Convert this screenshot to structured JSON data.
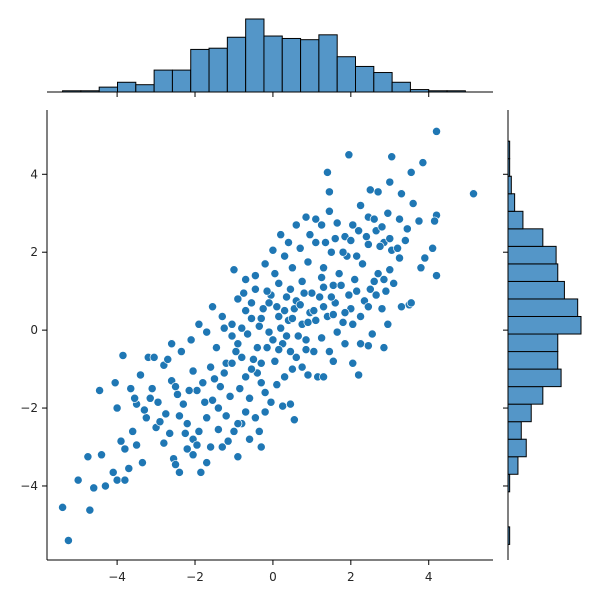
{
  "chart_data": {
    "type": "scatter",
    "title": "",
    "xlabel": "",
    "ylabel": "",
    "xlim": [
      -5.8,
      5.65
    ],
    "ylim": [
      -5.9,
      5.65
    ],
    "x_ticks": [
      -4,
      -2,
      0,
      2,
      4
    ],
    "y_ticks": [
      -4,
      -2,
      0,
      2,
      4
    ],
    "x_tick_labels": [
      "−4",
      "−2",
      "0",
      "2",
      "4"
    ],
    "y_tick_labels": [
      "−4",
      "−2",
      "0",
      "2",
      "4"
    ],
    "grid": false,
    "legend": "none",
    "point_color": "#1f77b4",
    "point_edge_color": "#ffffff",
    "hist_color": "#5496c8",
    "hist_edge_color": "#000000",
    "marginal_x_hist": {
      "bin_edges": [
        -5.4,
        -4.93,
        -4.46,
        -3.99,
        -3.52,
        -3.05,
        -2.58,
        -2.11,
        -1.64,
        -1.17,
        -0.7,
        -0.23,
        0.24,
        0.71,
        1.18,
        1.65,
        2.12,
        2.59,
        3.06,
        3.53,
        4.0,
        4.47,
        4.94,
        5.41
      ],
      "counts": [
        1,
        1,
        4,
        8,
        6,
        18,
        18,
        35,
        36,
        45,
        60,
        46,
        44,
        43,
        47,
        29,
        21,
        16,
        8,
        2,
        1,
        1,
        0
      ]
    },
    "marginal_y_hist": {
      "bin_edges": [
        -5.5,
        -5.05,
        -4.6,
        -4.15,
        -3.7,
        -3.25,
        -2.8,
        -2.35,
        -1.9,
        -1.45,
        -1.0,
        -0.55,
        -0.1,
        0.35,
        0.8,
        1.25,
        1.7,
        2.15,
        2.6,
        3.05,
        3.5,
        3.95,
        4.4,
        4.85
      ],
      "counts": [
        1,
        0,
        0,
        1,
        6,
        11,
        8,
        14,
        21,
        32,
        30,
        30,
        44,
        42,
        34,
        30,
        29,
        21,
        9,
        4,
        2,
        1,
        1
      ]
    },
    "points": [
      [
        -5.25,
        -5.4
      ],
      [
        -5.4,
        -4.55
      ],
      [
        -4.7,
        -4.62
      ],
      [
        -5.0,
        -3.85
      ],
      [
        -4.75,
        -3.25
      ],
      [
        -4.6,
        -4.05
      ],
      [
        -4.3,
        -4.0
      ],
      [
        -4.4,
        -3.2
      ],
      [
        -4.1,
        -3.65
      ],
      [
        -4.0,
        -3.85
      ],
      [
        -3.8,
        -3.85
      ],
      [
        -3.7,
        -3.55
      ],
      [
        -3.9,
        -2.85
      ],
      [
        -3.8,
        -3.05
      ],
      [
        -3.6,
        -2.6
      ],
      [
        -3.5,
        -2.95
      ],
      [
        -3.35,
        -3.4
      ],
      [
        -4.0,
        -2.0
      ],
      [
        -3.65,
        -1.5
      ],
      [
        -3.5,
        -1.9
      ],
      [
        -4.45,
        -1.55
      ],
      [
        -4.05,
        -1.35
      ],
      [
        -3.85,
        -0.65
      ],
      [
        -3.2,
        -0.7
      ],
      [
        -3.05,
        -0.7
      ],
      [
        -3.1,
        -1.5
      ],
      [
        -3.25,
        -2.25
      ],
      [
        -3.0,
        -2.5
      ],
      [
        -2.8,
        -2.9
      ],
      [
        -2.55,
        -3.3
      ],
      [
        -2.4,
        -3.65
      ],
      [
        -2.5,
        -3.45
      ],
      [
        -2.05,
        -3.2
      ],
      [
        -1.7,
        -3.4
      ],
      [
        -1.85,
        -3.65
      ],
      [
        -1.3,
        -3.0
      ],
      [
        -2.8,
        -0.9
      ],
      [
        -2.7,
        -0.75
      ],
      [
        -2.6,
        -1.3
      ],
      [
        -2.45,
        -1.65
      ],
      [
        -2.3,
        -1.9
      ],
      [
        -2.2,
        -2.4
      ],
      [
        -2.05,
        -2.8
      ],
      [
        -1.9,
        -2.6
      ],
      [
        -1.7,
        -2.25
      ],
      [
        -1.55,
        -1.8
      ],
      [
        -1.4,
        -2.0
      ],
      [
        -1.2,
        -2.2
      ],
      [
        -1.0,
        -2.6
      ],
      [
        -0.8,
        -2.4
      ],
      [
        -0.6,
        -2.8
      ],
      [
        -0.35,
        -2.6
      ],
      [
        -0.2,
        -2.1
      ],
      [
        -0.05,
        -1.85
      ],
      [
        0.25,
        -1.95
      ],
      [
        0.45,
        -1.9
      ],
      [
        0.55,
        -2.3
      ],
      [
        0.1,
        -1.4
      ],
      [
        0.3,
        -1.2
      ],
      [
        0.5,
        -1.0
      ],
      [
        0.75,
        -0.95
      ],
      [
        0.9,
        -1.15
      ],
      [
        1.15,
        -1.2
      ],
      [
        1.3,
        -1.2
      ],
      [
        1.55,
        -0.8
      ],
      [
        1.85,
        -0.35
      ],
      [
        2.05,
        -0.85
      ],
      [
        2.2,
        -1.15
      ],
      [
        2.45,
        -0.4
      ],
      [
        2.55,
        -0.1
      ],
      [
        2.95,
        0.15
      ],
      [
        2.85,
        -0.45
      ],
      [
        -2.6,
        -0.35
      ],
      [
        -2.35,
        -0.55
      ],
      [
        -2.1,
        -0.25
      ],
      [
        -1.9,
        0.15
      ],
      [
        -1.7,
        -0.05
      ],
      [
        -1.55,
        0.6
      ],
      [
        -1.3,
        0.35
      ],
      [
        -1.05,
        0.15
      ],
      [
        -0.9,
        0.8
      ],
      [
        -0.7,
        0.5
      ],
      [
        -0.45,
        1.05
      ],
      [
        -0.25,
        0.55
      ],
      [
        -0.05,
        0.9
      ],
      [
        0.15,
        0.35
      ],
      [
        0.35,
        0.85
      ],
      [
        0.55,
        0.55
      ],
      [
        0.75,
        0.15
      ],
      [
        0.95,
        0.45
      ],
      [
        1.2,
        0.85
      ],
      [
        1.4,
        0.35
      ],
      [
        1.6,
        0.7
      ],
      [
        1.8,
        0.2
      ],
      [
        2.0,
        0.55
      ],
      [
        2.25,
        0.35
      ],
      [
        -1.45,
        -0.45
      ],
      [
        -1.2,
        -0.85
      ],
      [
        -0.95,
        -0.55
      ],
      [
        -0.7,
        -1.2
      ],
      [
        -0.5,
        -0.75
      ],
      [
        -0.3,
        -1.35
      ],
      [
        -0.15,
        -0.45
      ],
      [
        0.05,
        -0.8
      ],
      [
        0.25,
        -0.35
      ],
      [
        0.45,
        -0.55
      ],
      [
        0.65,
        -0.15
      ],
      [
        0.85,
        -0.5
      ],
      [
        -2.05,
        -1.05
      ],
      [
        -1.8,
        -1.35
      ],
      [
        -1.6,
        -0.95
      ],
      [
        -1.35,
        -1.45
      ],
      [
        -1.1,
        -1.7
      ],
      [
        -0.85,
        -1.5
      ],
      [
        -0.6,
        -1.75
      ],
      [
        -0.4,
        -1.1
      ],
      [
        -0.2,
        -1.6
      ],
      [
        0.0,
        -0.25
      ],
      [
        0.2,
        0.05
      ],
      [
        0.4,
        0.25
      ],
      [
        -1.0,
        1.55
      ],
      [
        -0.7,
        1.3
      ],
      [
        -0.45,
        1.4
      ],
      [
        -0.2,
        1.7
      ],
      [
        0.05,
        1.45
      ],
      [
        0.3,
        1.9
      ],
      [
        0.5,
        1.6
      ],
      [
        0.7,
        2.1
      ],
      [
        0.9,
        1.75
      ],
      [
        1.1,
        2.25
      ],
      [
        1.3,
        1.6
      ],
      [
        1.5,
        2.0
      ],
      [
        1.7,
        1.45
      ],
      [
        1.9,
        1.9
      ],
      [
        2.1,
        1.3
      ],
      [
        2.3,
        1.7
      ],
      [
        2.5,
        1.05
      ],
      [
        2.7,
        1.45
      ],
      [
        2.9,
        1.0
      ],
      [
        3.1,
        1.2
      ],
      [
        3.3,
        0.6
      ],
      [
        3.5,
        0.65
      ],
      [
        3.55,
        0.7
      ],
      [
        3.8,
        1.6
      ],
      [
        0.0,
        2.05
      ],
      [
        0.2,
        2.45
      ],
      [
        0.4,
        2.25
      ],
      [
        0.6,
        2.7
      ],
      [
        0.85,
        2.9
      ],
      [
        0.95,
        2.45
      ],
      [
        1.25,
        2.7
      ],
      [
        1.45,
        3.05
      ],
      [
        1.65,
        2.75
      ],
      [
        1.85,
        2.4
      ],
      [
        2.05,
        2.7
      ],
      [
        2.25,
        3.2
      ],
      [
        2.45,
        2.9
      ],
      [
        2.65,
        2.55
      ],
      [
        2.85,
        2.25
      ],
      [
        3.05,
        2.05
      ],
      [
        3.25,
        1.85
      ],
      [
        3.45,
        2.6
      ],
      [
        2.5,
        3.6
      ],
      [
        2.7,
        3.55
      ],
      [
        3.0,
        3.8
      ],
      [
        3.3,
        3.5
      ],
      [
        3.55,
        4.05
      ],
      [
        3.85,
        4.3
      ],
      [
        3.05,
        4.45
      ],
      [
        1.4,
        4.05
      ],
      [
        1.45,
        3.55
      ],
      [
        1.95,
        4.5
      ],
      [
        4.2,
        5.1
      ],
      [
        5.15,
        3.5
      ],
      [
        4.2,
        2.95
      ],
      [
        4.15,
        2.8
      ],
      [
        4.1,
        2.1
      ],
      [
        4.2,
        1.4
      ],
      [
        3.9,
        1.85
      ],
      [
        3.75,
        2.8
      ],
      [
        3.6,
        3.25
      ],
      [
        3.25,
        2.85
      ],
      [
        2.95,
        3.0
      ],
      [
        2.75,
        2.15
      ],
      [
        2.45,
        2.2
      ],
      [
        2.15,
        1.9
      ],
      [
        1.55,
        1.15
      ],
      [
        1.25,
        1.35
      ],
      [
        1.0,
        0.95
      ],
      [
        0.75,
        1.25
      ],
      [
        0.45,
        1.05
      ],
      [
        0.15,
        1.2
      ],
      [
        -0.15,
        1.0
      ],
      [
        -0.35,
        0.1
      ],
      [
        -0.55,
        0.3
      ],
      [
        -0.8,
        0.05
      ],
      [
        -1.05,
        -0.15
      ],
      [
        -1.25,
        0.05
      ],
      [
        -0.9,
        -0.35
      ],
      [
        -0.65,
        -0.1
      ],
      [
        -0.4,
        -0.45
      ],
      [
        -0.1,
        -0.05
      ],
      [
        0.15,
        -0.5
      ],
      [
        0.35,
        -0.15
      ],
      [
        0.6,
        0.75
      ],
      [
        0.8,
        0.95
      ],
      [
        1.05,
        0.5
      ],
      [
        1.3,
        1.1
      ],
      [
        1.55,
        0.4
      ],
      [
        1.75,
        1.15
      ],
      [
        1.95,
        0.9
      ],
      [
        2.15,
        1.0
      ],
      [
        2.35,
        0.75
      ],
      [
        2.6,
        1.25
      ],
      [
        2.8,
        0.55
      ],
      [
        3.0,
        1.55
      ],
      [
        -2.95,
        -1.85
      ],
      [
        -2.75,
        -2.15
      ],
      [
        -2.5,
        -1.45
      ],
      [
        -2.25,
        -2.65
      ],
      [
        -1.95,
        -1.55
      ],
      [
        -1.75,
        -1.85
      ],
      [
        -1.5,
        -1.25
      ],
      [
        -1.25,
        -1.1
      ],
      [
        -1.05,
        -0.85
      ],
      [
        -0.8,
        -0.7
      ],
      [
        -0.55,
        -1.0
      ],
      [
        -0.3,
        -0.85
      ],
      [
        -1.6,
        -3.0
      ],
      [
        -1.4,
        -2.55
      ],
      [
        -1.15,
        -2.85
      ],
      [
        -0.9,
        -3.25
      ],
      [
        -0.7,
        -2.1
      ],
      [
        -0.45,
        -2.25
      ],
      [
        -3.3,
        -2.05
      ],
      [
        -3.15,
        -1.75
      ],
      [
        -2.9,
        -2.35
      ],
      [
        -2.65,
        -2.65
      ],
      [
        -2.4,
        -2.2
      ],
      [
        -2.15,
        -1.55
      ],
      [
        0.6,
        -0.7
      ],
      [
        0.85,
        -0.25
      ],
      [
        1.05,
        -0.55
      ],
      [
        1.25,
        -0.2
      ],
      [
        1.45,
        -0.55
      ],
      [
        1.65,
        -0.05
      ],
      [
        1.85,
        0.45
      ],
      [
        2.05,
        0.15
      ],
      [
        2.25,
        -0.35
      ],
      [
        2.45,
        0.6
      ],
      [
        2.65,
        0.9
      ],
      [
        2.85,
        1.3
      ],
      [
        -0.75,
        0.95
      ],
      [
        -0.55,
        0.7
      ],
      [
        -0.3,
        0.3
      ],
      [
        -0.1,
        0.7
      ],
      [
        0.1,
        0.6
      ],
      [
        0.3,
        0.5
      ],
      [
        0.5,
        0.3
      ],
      [
        0.7,
        0.65
      ],
      [
        0.9,
        0.2
      ],
      [
        1.1,
        0.25
      ],
      [
        1.3,
        0.6
      ],
      [
        1.5,
        0.85
      ],
      [
        -3.4,
        -1.15
      ],
      [
        -3.55,
        -1.75
      ],
      [
        -2.2,
        -3.05
      ],
      [
        -1.95,
        -2.95
      ],
      [
        -0.9,
        -2.4
      ],
      [
        -0.3,
        -3.0
      ],
      [
        1.1,
        2.85
      ],
      [
        1.35,
        2.25
      ],
      [
        1.6,
        2.35
      ],
      [
        1.8,
        2.0
      ],
      [
        2.0,
        2.3
      ],
      [
        2.2,
        2.55
      ],
      [
        2.4,
        2.4
      ],
      [
        2.6,
        2.85
      ],
      [
        2.8,
        2.65
      ],
      [
        3.0,
        2.35
      ],
      [
        3.2,
        2.1
      ],
      [
        3.4,
        2.3
      ]
    ]
  }
}
